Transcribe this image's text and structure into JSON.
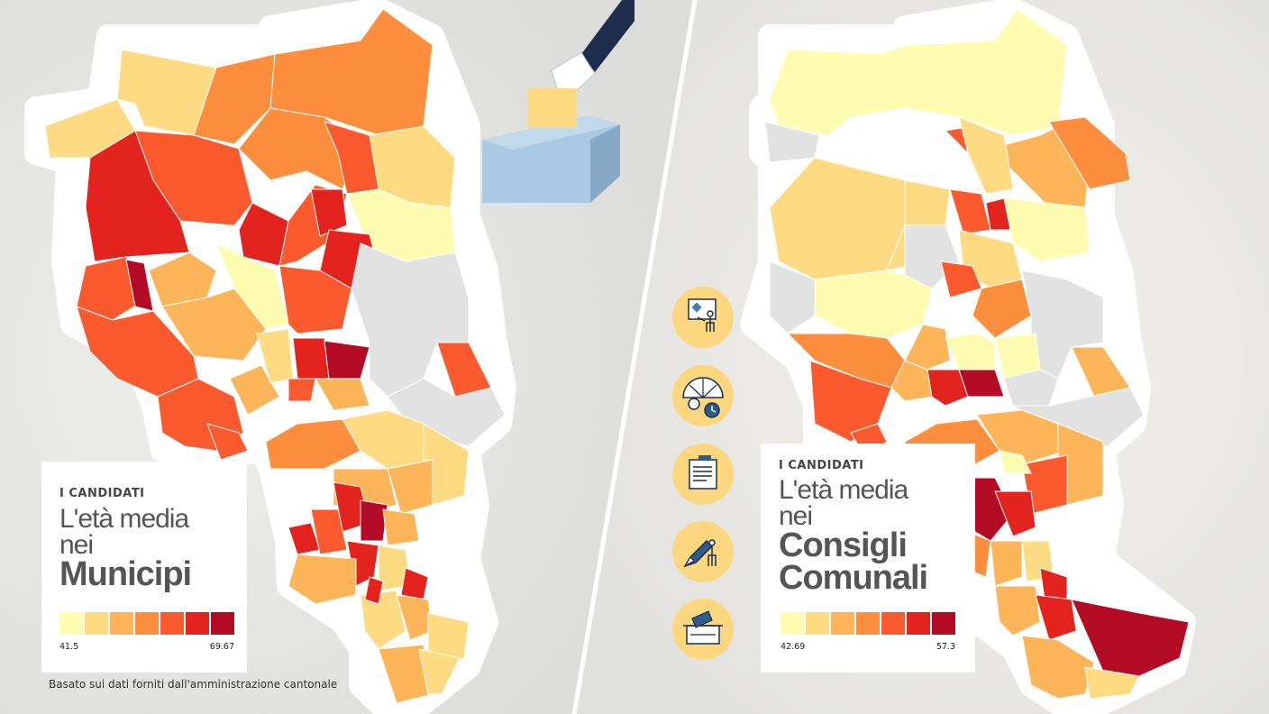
{
  "colors": {
    "scale": [
      "#fefcb0",
      "#fedb82",
      "#fdb55a",
      "#fc8e3e",
      "#fa5a2e",
      "#e2231e",
      "#b30a26"
    ],
    "nodata": "#e2e2e2",
    "icon_bg": "#fcd77f",
    "ballot_box": "#a9c9e4",
    "sleeve": "#1c2d4e"
  },
  "left_panel": {
    "kicker": "I CANDIDATI",
    "title_line1": "L'età media",
    "title_line2": "nei",
    "title_bold1": "Municipi",
    "legend_min": "41.5",
    "legend_max": "69.67"
  },
  "right_panel": {
    "kicker": "I CANDIDATI",
    "title_line1": "L'età media",
    "title_line2": "nei",
    "title_bold1": "Consigli",
    "title_bold2": "Comunali",
    "legend_min": "42.69",
    "legend_max": "57.3"
  },
  "footer": {
    "source": "Basato sui dati forniti dall'amministrazione cantonale"
  },
  "icons": [
    "speaker-podium-icon",
    "speedometer-clock-icon",
    "newspaper-icon",
    "pencil-vote-icon",
    "ballot-box-icon"
  ]
}
